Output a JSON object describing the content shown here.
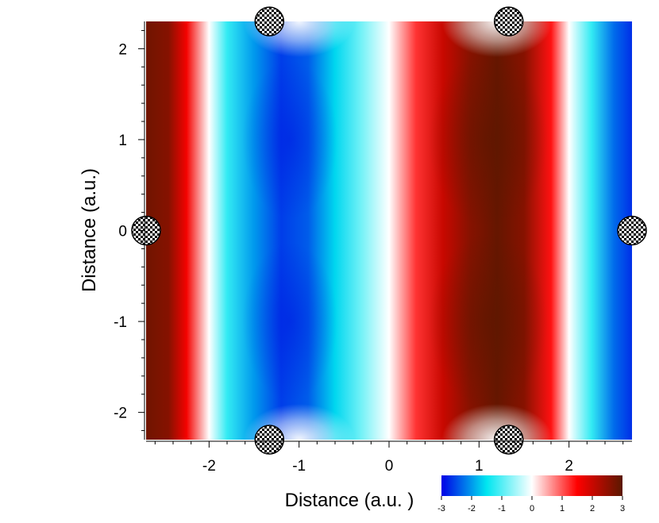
{
  "chart_data": {
    "type": "heatmap",
    "title": "",
    "xlabel": "Distance (a.u.  )",
    "ylabel": "Distance (a.u.)",
    "xlim": [
      -2.7,
      2.7
    ],
    "ylim": [
      -2.3,
      2.3
    ],
    "x_ticks": [
      -2,
      -1,
      0,
      1,
      2
    ],
    "y_ticks": [
      2,
      1,
      0,
      -1,
      -2
    ],
    "x_tick_labels": [
      "-2",
      "-1",
      "0",
      "1",
      "2"
    ],
    "y_tick_labels": [
      "2",
      "1",
      "0",
      "-1",
      "-2"
    ],
    "colorbar": {
      "range": [
        -3,
        3
      ],
      "ticks": [
        -3,
        -2,
        -1,
        0,
        1,
        2,
        3
      ],
      "tick_labels": [
        "-3",
        "-2",
        "-1",
        "0",
        "1",
        "2",
        "3"
      ],
      "colors": [
        "#0000e6",
        "#00e6f0",
        "#ffffff",
        "#ff0000",
        "#5a1800"
      ]
    },
    "column_profile": {
      "x": [
        -2.7,
        -2.45,
        -2.25,
        -2.0,
        -1.8,
        -1.5,
        -1.2,
        -0.9,
        -0.6,
        -0.3,
        0.0,
        0.3,
        0.6,
        0.9,
        1.2,
        1.5,
        1.8,
        2.0,
        2.25,
        2.5,
        2.7
      ],
      "value": [
        2.8,
        2.6,
        1.6,
        0.0,
        -1.2,
        -2.0,
        -2.6,
        -2.4,
        -1.6,
        -0.8,
        0.0,
        1.2,
        2.0,
        2.6,
        2.9,
        2.6,
        1.4,
        0.0,
        -1.2,
        -2.3,
        -2.7
      ]
    },
    "atoms": [
      {
        "x": -1.33,
        "y": 2.3
      },
      {
        "x": 1.33,
        "y": 2.3
      },
      {
        "x": -2.7,
        "y": 0.0
      },
      {
        "x": 2.7,
        "y": 0.0
      },
      {
        "x": -1.33,
        "y": -2.3
      },
      {
        "x": 1.33,
        "y": -2.3
      }
    ]
  }
}
